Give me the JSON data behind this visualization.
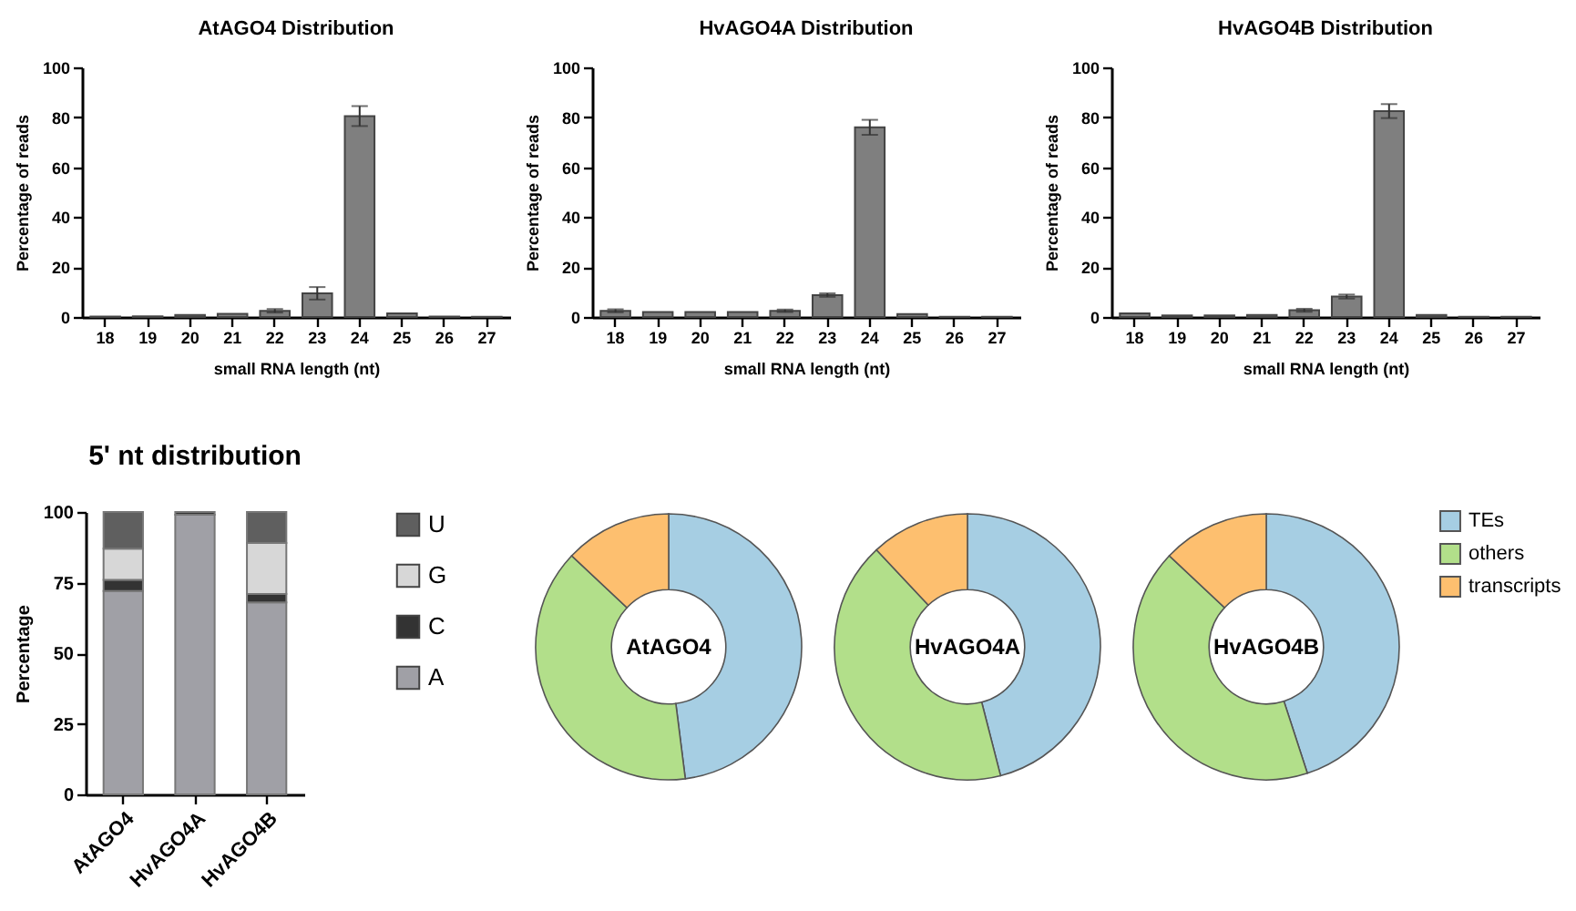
{
  "chart_data": [
    {
      "type": "bar",
      "title": "AtAGO4 Distribution",
      "xlabel": "small RNA length (nt)",
      "ylabel": "Percentage of reads",
      "categories": [
        "18",
        "19",
        "20",
        "21",
        "22",
        "23",
        "24",
        "25",
        "26",
        "27"
      ],
      "color": "#7f7f7f",
      "values": [
        0.2,
        0.3,
        0.8,
        1.3,
        2.5,
        9.5,
        80.5,
        1.5,
        0.2,
        0.1
      ],
      "errors": [
        null,
        null,
        null,
        null,
        0.7,
        2.5,
        4,
        null,
        null,
        null
      ],
      "ylim": [
        0,
        100
      ],
      "yticks": [
        0,
        20,
        40,
        60,
        80,
        100
      ]
    },
    {
      "type": "bar",
      "title": "HvAGO4A Distribution",
      "xlabel": "small RNA length (nt)",
      "ylabel": "Percentage of reads",
      "categories": [
        "18",
        "19",
        "20",
        "21",
        "22",
        "23",
        "24",
        "25",
        "26",
        "27"
      ],
      "color": "#7f7f7f",
      "values": [
        2.5,
        2,
        2,
        2,
        2.5,
        8.8,
        76,
        1.2,
        0.1,
        0.1
      ],
      "errors": [
        0.6,
        null,
        null,
        null,
        0.5,
        0.7,
        3,
        null,
        null,
        null
      ],
      "ylim": [
        0,
        100
      ],
      "yticks": [
        0,
        20,
        40,
        60,
        80,
        100
      ]
    },
    {
      "type": "bar",
      "title": "HvAGO4B Distribution",
      "xlabel": "small RNA length (nt)",
      "ylabel": "Percentage of reads",
      "categories": [
        "18",
        "19",
        "20",
        "21",
        "22",
        "23",
        "24",
        "25",
        "26",
        "27"
      ],
      "color": "#7f7f7f",
      "values": [
        1.5,
        0.6,
        0.6,
        0.8,
        2.7,
        8.2,
        82.5,
        0.8,
        0.1,
        0.1
      ],
      "errors": [
        null,
        null,
        null,
        null,
        0.6,
        0.8,
        2.8,
        null,
        null,
        null
      ],
      "ylim": [
        0,
        100
      ],
      "yticks": [
        0,
        20,
        40,
        60,
        80,
        100
      ]
    },
    {
      "type": "bar",
      "stacked": true,
      "title": "5' nt distribution",
      "ylabel": "Percentage",
      "categories": [
        "AtAGO4",
        "HvAGO4A",
        "HvAGO4B"
      ],
      "series": [
        {
          "name": "A",
          "color": "#a0a0a6",
          "values": [
            72,
            99,
            68
          ]
        },
        {
          "name": "C",
          "color": "#333333",
          "values": [
            4,
            1,
            3
          ]
        },
        {
          "name": "G",
          "color": "#d7d7d7",
          "values": [
            11,
            0,
            18
          ]
        },
        {
          "name": "U",
          "color": "#5f5f5f",
          "values": [
            13,
            0,
            11
          ]
        }
      ],
      "legend": "right",
      "ylim": [
        0,
        100
      ],
      "yticks": [
        0,
        25,
        50,
        75,
        100
      ]
    },
    {
      "type": "donut",
      "title": "AtAGO4",
      "categories": [
        null,
        null,
        null
      ],
      "values": [
        48,
        39,
        13
      ],
      "colors": [
        "#a6cee3",
        "#b2df8a",
        "#fdbf6f"
      ]
    },
    {
      "type": "donut",
      "title": "HvAGO4A",
      "categories": [
        null,
        null,
        null
      ],
      "values": [
        46,
        42,
        12
      ],
      "colors": [
        "#a6cee3",
        "#b2df8a",
        "#fdbf6f"
      ]
    },
    {
      "type": "donut",
      "title": "HvAGO4B",
      "categories": [
        "TEs",
        "others",
        "transcripts"
      ],
      "values": [
        45,
        42,
        13
      ],
      "colors": [
        "#a6cee3",
        "#b2df8a",
        "#fdbf6f"
      ],
      "legend": "right"
    }
  ]
}
